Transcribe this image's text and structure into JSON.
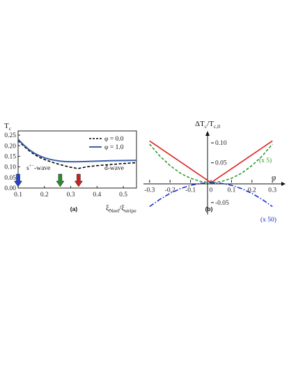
{
  "chart_data": [
    {
      "type": "line",
      "panel_label": "(a)",
      "ylabel": "T",
      "ylabel_sub": "c",
      "xlabel_num": "ξ",
      "xlabel_num_sub": "Neel",
      "xlabel_sep": "/",
      "xlabel_den": "ξ",
      "xlabel_den_sub": "stripe",
      "xlim": [
        0.1,
        0.55
      ],
      "ylim": [
        0.0,
        0.27
      ],
      "x_ticks": [
        "0.1",
        "0.2",
        "0.3",
        "0.4",
        "0.5"
      ],
      "y_ticks": [
        "0.00",
        "0.05",
        "0.10",
        "0.15",
        "0.20",
        "0.25"
      ],
      "legend_position": "top-right",
      "series": [
        {
          "name": "φ = 0.0",
          "style": "dashed",
          "color": "#000000",
          "x": [
            0.1,
            0.12,
            0.14,
            0.16,
            0.18,
            0.2,
            0.22,
            0.24,
            0.26,
            0.28,
            0.3,
            0.32,
            0.33,
            0.36,
            0.4,
            0.45,
            0.5,
            0.55
          ],
          "y": [
            0.225,
            0.2,
            0.178,
            0.16,
            0.146,
            0.135,
            0.126,
            0.118,
            0.111,
            0.104,
            0.098,
            0.094,
            0.093,
            0.1,
            0.106,
            0.111,
            0.116,
            0.12
          ]
        },
        {
          "name": "φ = 1.0",
          "style": "solid",
          "color": "#3a5fa8",
          "x": [
            0.1,
            0.12,
            0.14,
            0.16,
            0.18,
            0.2,
            0.22,
            0.24,
            0.26,
            0.28,
            0.3,
            0.32,
            0.35,
            0.4,
            0.45,
            0.5,
            0.55
          ],
          "y": [
            0.23,
            0.205,
            0.183,
            0.166,
            0.153,
            0.143,
            0.136,
            0.131,
            0.127,
            0.125,
            0.124,
            0.124,
            0.125,
            0.127,
            0.129,
            0.13,
            0.131
          ]
        }
      ],
      "annotations": [
        {
          "text": "s",
          "sup": "+−",
          "suffix": "-wave",
          "x": 0.11,
          "y": 0.053
        },
        {
          "text": "d-wave",
          "x": 0.44,
          "y": 0.053
        }
      ],
      "arrows": [
        {
          "x": 0.1,
          "color": "#2244cc"
        },
        {
          "x": 0.26,
          "color": "#2e8b2e"
        },
        {
          "x": 0.33,
          "color": "#cc2222"
        }
      ]
    },
    {
      "type": "line",
      "panel_label": "(b)",
      "ylabel_num": "ΔT",
      "ylabel_num_sub": "c",
      "ylabel_sep": "/",
      "ylabel_den": "T",
      "ylabel_den_sub": "c,0",
      "xlabel": "φ",
      "xlim": [
        -0.33,
        0.33
      ],
      "ylim": [
        -0.08,
        0.13
      ],
      "x_ticks": [
        "-0.3",
        "-0.2",
        "-0.1",
        "0",
        "0.1",
        "0.2",
        "0.3"
      ],
      "y_ticks": [
        "-0.05",
        "0.05",
        "0.10"
      ],
      "series": [
        {
          "name": "",
          "style": "solid",
          "color": "#e02020",
          "x": [
            -0.3,
            -0.2,
            -0.1,
            0.0,
            0.1,
            0.2,
            0.3
          ],
          "y": [
            0.105,
            0.07,
            0.035,
            0.0,
            0.035,
            0.07,
            0.105
          ]
        },
        {
          "name": "(x 5)",
          "style": "dashed",
          "color": "#2e9a2e",
          "x": [
            -0.3,
            -0.25,
            -0.2,
            -0.15,
            -0.1,
            -0.05,
            0.0,
            0.05,
            0.1,
            0.15,
            0.2,
            0.25,
            0.3
          ],
          "y": [
            0.097,
            0.067,
            0.043,
            0.024,
            0.011,
            0.003,
            0.0,
            0.003,
            0.011,
            0.024,
            0.043,
            0.067,
            0.097
          ]
        },
        {
          "name": "(x 50)",
          "style": "dashdot",
          "color": "#1a2fcc",
          "x": [
            -0.3,
            -0.25,
            -0.2,
            -0.15,
            -0.1,
            -0.05,
            0.0,
            0.05,
            0.1,
            0.15,
            0.2,
            0.25,
            0.3
          ],
          "y": [
            -0.06,
            -0.042,
            -0.027,
            -0.015,
            -0.0067,
            -0.0017,
            0.0,
            -0.0017,
            -0.0067,
            -0.015,
            -0.027,
            -0.042,
            -0.06
          ]
        }
      ]
    }
  ]
}
